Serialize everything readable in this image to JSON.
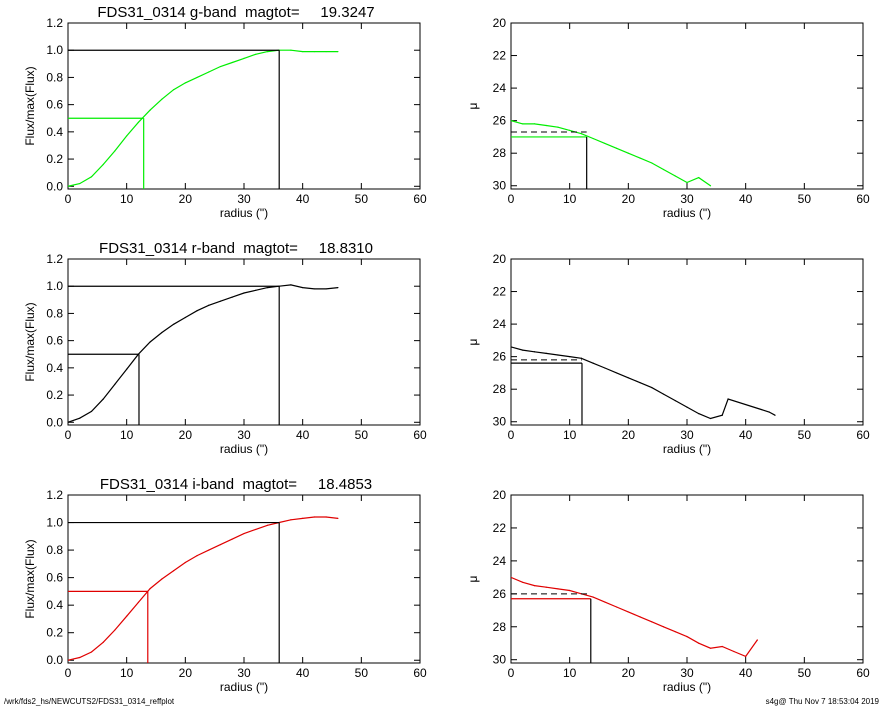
{
  "footer": {
    "left": "/wrk/fds2_hs/NEWCUTS2/FDS31_0314_reffplot",
    "right": "s4g@  Thu Nov  7 18:53:04 2019"
  },
  "chart_data": [
    {
      "type": "line",
      "title": "FDS31_0314 g-band  magtot=     19.3247",
      "xlabel": "radius (\")",
      "ylabel": "Flux/max(Flux)",
      "xlim": [
        0,
        60
      ],
      "ylim": [
        -0.02,
        1.2
      ],
      "xticks": [
        "0",
        "10",
        "20",
        "30",
        "40",
        "50",
        "60"
      ],
      "yticks": [
        "0.0",
        "0.2",
        "0.4",
        "0.6",
        "0.8",
        "1.0",
        "1.2"
      ],
      "color": "#00ee00",
      "x": [
        0,
        2,
        4,
        6,
        8,
        10,
        12,
        14,
        16,
        18,
        20,
        22,
        24,
        26,
        28,
        30,
        32,
        34,
        36,
        38,
        40,
        42,
        44,
        46
      ],
      "y": [
        0.0,
        0.02,
        0.07,
        0.16,
        0.26,
        0.37,
        0.47,
        0.56,
        0.64,
        0.71,
        0.76,
        0.8,
        0.84,
        0.88,
        0.91,
        0.94,
        0.97,
        0.99,
        1.0,
        1.0,
        0.99,
        0.99,
        0.99,
        0.99
      ],
      "half_light_radius": 12.9,
      "total_radius": 36.0
    },
    {
      "type": "line",
      "xlabel": "radius (\")",
      "ylabel": "μ",
      "xlim": [
        0,
        60
      ],
      "ylim": [
        30.2,
        20
      ],
      "xticks": [
        "0",
        "10",
        "20",
        "30",
        "40",
        "50",
        "60"
      ],
      "yticks": [
        "20",
        "22",
        "24",
        "26",
        "28",
        "30"
      ],
      "color": "#00ee00",
      "x": [
        0,
        2,
        4,
        6,
        8,
        10,
        12,
        14,
        16,
        18,
        20,
        22,
        24,
        26,
        28,
        30,
        32,
        34
      ],
      "y": [
        26.0,
        26.2,
        26.2,
        26.3,
        26.4,
        26.6,
        26.8,
        27.1,
        27.4,
        27.7,
        28.0,
        28.3,
        28.6,
        29.0,
        29.4,
        29.8,
        29.5,
        30.0
      ],
      "mean_level": 26.7,
      "effective_level": 27.0,
      "effective_radius": 12.9
    },
    {
      "type": "line",
      "title": "FDS31_0314 r-band  magtot=     18.8310",
      "xlabel": "radius (\")",
      "ylabel": "Flux/max(Flux)",
      "xlim": [
        0,
        60
      ],
      "ylim": [
        -0.02,
        1.2
      ],
      "xticks": [
        "0",
        "10",
        "20",
        "30",
        "40",
        "50",
        "60"
      ],
      "yticks": [
        "0.0",
        "0.2",
        "0.4",
        "0.6",
        "0.8",
        "1.0",
        "1.2"
      ],
      "color": "#000000",
      "x": [
        0,
        2,
        4,
        6,
        8,
        10,
        12,
        14,
        16,
        18,
        20,
        22,
        24,
        26,
        28,
        30,
        32,
        34,
        36,
        38,
        40,
        42,
        44,
        46
      ],
      "y": [
        0.0,
        0.03,
        0.08,
        0.17,
        0.28,
        0.39,
        0.5,
        0.59,
        0.66,
        0.72,
        0.77,
        0.82,
        0.86,
        0.89,
        0.92,
        0.95,
        0.97,
        0.99,
        1.0,
        1.01,
        0.99,
        0.98,
        0.98,
        0.99
      ],
      "half_light_radius": 12.1,
      "total_radius": 36.0
    },
    {
      "type": "line",
      "xlabel": "radius (\")",
      "ylabel": "μ",
      "xlim": [
        0,
        60
      ],
      "ylim": [
        30.2,
        20
      ],
      "xticks": [
        "0",
        "10",
        "20",
        "30",
        "40",
        "50",
        "60"
      ],
      "yticks": [
        "20",
        "22",
        "24",
        "26",
        "28",
        "30"
      ],
      "color": "#000000",
      "x": [
        0,
        2,
        4,
        6,
        8,
        10,
        12,
        14,
        16,
        18,
        20,
        22,
        24,
        26,
        28,
        30,
        32,
        34,
        36,
        37,
        44,
        45
      ],
      "y": [
        25.4,
        25.6,
        25.7,
        25.8,
        25.9,
        26.0,
        26.1,
        26.4,
        26.7,
        27.0,
        27.3,
        27.6,
        27.9,
        28.3,
        28.7,
        29.1,
        29.5,
        29.8,
        29.6,
        28.6,
        29.4,
        29.6
      ],
      "mean_level": 26.2,
      "effective_level": 26.4,
      "effective_radius": 12.1
    },
    {
      "type": "line",
      "title": "FDS31_0314 i-band  magtot=     18.4853",
      "xlabel": "radius (\")",
      "ylabel": "Flux/max(Flux)",
      "xlim": [
        0,
        60
      ],
      "ylim": [
        -0.02,
        1.2
      ],
      "xticks": [
        "0",
        "10",
        "20",
        "30",
        "40",
        "50",
        "60"
      ],
      "yticks": [
        "0.0",
        "0.2",
        "0.4",
        "0.6",
        "0.8",
        "1.0",
        "1.2"
      ],
      "color": "#e00000",
      "x": [
        0,
        2,
        4,
        6,
        8,
        10,
        12,
        14,
        16,
        18,
        20,
        22,
        24,
        26,
        28,
        30,
        32,
        34,
        36,
        38,
        40,
        42,
        44,
        46
      ],
      "y": [
        0.0,
        0.02,
        0.06,
        0.13,
        0.22,
        0.32,
        0.42,
        0.52,
        0.59,
        0.65,
        0.71,
        0.76,
        0.8,
        0.84,
        0.88,
        0.92,
        0.95,
        0.98,
        1.0,
        1.02,
        1.03,
        1.04,
        1.04,
        1.03
      ],
      "half_light_radius": 13.6,
      "total_radius": 36.0
    },
    {
      "type": "line",
      "xlabel": "radius (\")",
      "ylabel": "μ",
      "xlim": [
        0,
        60
      ],
      "ylim": [
        30.2,
        20
      ],
      "xticks": [
        "0",
        "10",
        "20",
        "30",
        "40",
        "50",
        "60"
      ],
      "yticks": [
        "20",
        "22",
        "24",
        "26",
        "28",
        "30"
      ],
      "color": "#e00000",
      "x": [
        0,
        2,
        4,
        6,
        8,
        10,
        12,
        14,
        16,
        18,
        20,
        22,
        24,
        26,
        28,
        30,
        32,
        34,
        36,
        38,
        40,
        42
      ],
      "y": [
        25.0,
        25.3,
        25.5,
        25.6,
        25.7,
        25.8,
        26.0,
        26.2,
        26.5,
        26.8,
        27.1,
        27.4,
        27.7,
        28.0,
        28.3,
        28.6,
        29.0,
        29.3,
        29.2,
        29.5,
        29.8,
        28.8
      ],
      "mean_level": 26.0,
      "effective_level": 26.3,
      "effective_radius": 13.6
    }
  ]
}
